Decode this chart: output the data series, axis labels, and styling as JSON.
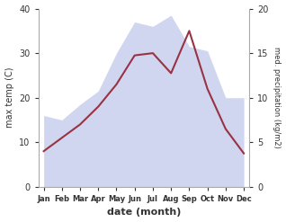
{
  "months": [
    "Jan",
    "Feb",
    "Mar",
    "Apr",
    "May",
    "Jun",
    "Jul",
    "Aug",
    "Sep",
    "Oct",
    "Nov",
    "Dec"
  ],
  "max_temp": [
    8.0,
    11.0,
    14.0,
    18.0,
    23.0,
    29.5,
    30.0,
    25.5,
    35.0,
    22.0,
    13.0,
    7.5
  ],
  "precipitation": [
    16.0,
    15.0,
    18.5,
    21.5,
    30.0,
    37.0,
    36.0,
    38.5,
    31.5,
    30.5,
    20.0,
    20.0
  ],
  "temp_color": "#993344",
  "precip_fill_color": "#b8bfe8",
  "xlabel": "date (month)",
  "ylabel_left": "max temp (C)",
  "ylabel_right": "med. precipitation (kg/m2)",
  "ylim_left": [
    0,
    40
  ],
  "yticks_left": [
    0,
    10,
    20,
    30,
    40
  ],
  "yticks_right": [
    0,
    5,
    10,
    15,
    20
  ],
  "background_color": "#ffffff"
}
